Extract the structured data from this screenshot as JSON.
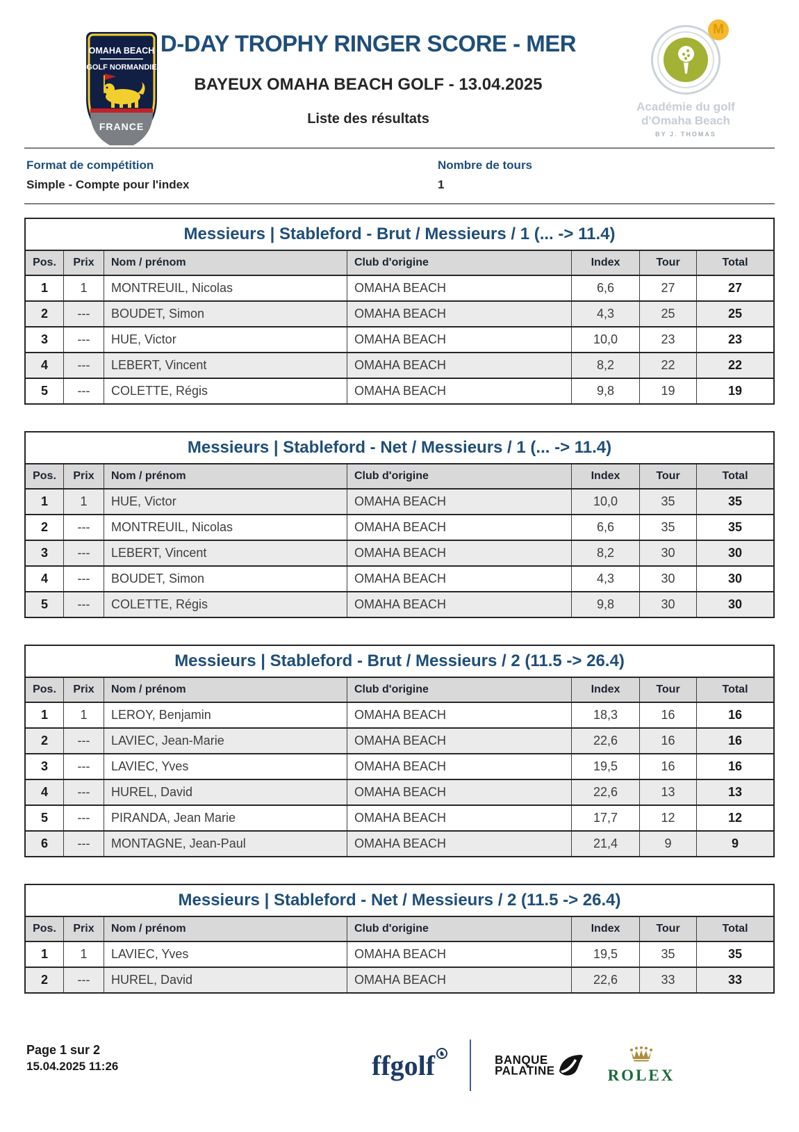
{
  "header": {
    "title": "D-DAY TROPHY RINGER SCORE - MER",
    "subtitle": "BAYEUX OMAHA BEACH GOLF - 13.04.2025",
    "list_label": "Liste des résultats",
    "club_badge": {
      "line1": "OMAHA BEACH",
      "line2": "GOLF NORMANDIE",
      "line3": "FRANCE"
    },
    "academy_badge": {
      "m_letter": "M",
      "line1": "Académie du golf",
      "line2": "d'Omaha Beach",
      "byline": "BY J. THOMAS"
    }
  },
  "meta": {
    "format_label": "Format de compétition",
    "format_value": "Simple - Compte pour l'index",
    "rounds_label": "Nombre de tours",
    "rounds_value": "1"
  },
  "columns": [
    "Pos.",
    "Prix",
    "Nom / prénom",
    "Club d'origine",
    "Index",
    "Tour",
    "Total"
  ],
  "tables": [
    {
      "title": "Messieurs | Stableford - Brut / Messieurs / 1 (... -> 11.4)",
      "rows": [
        {
          "pos": "1",
          "prix": "1",
          "name": "MONTREUIL, Nicolas",
          "club": "OMAHA BEACH",
          "index": "6,6",
          "tour": "27",
          "total": "27"
        },
        {
          "pos": "2",
          "prix": "---",
          "name": "BOUDET, Simon",
          "club": "OMAHA BEACH",
          "index": "4,3",
          "tour": "25",
          "total": "25"
        },
        {
          "pos": "3",
          "prix": "---",
          "name": "HUE, Victor",
          "club": "OMAHA BEACH",
          "index": "10,0",
          "tour": "23",
          "total": "23"
        },
        {
          "pos": "4",
          "prix": "---",
          "name": "LEBERT, Vincent",
          "club": "OMAHA BEACH",
          "index": "8,2",
          "tour": "22",
          "total": "22"
        },
        {
          "pos": "5",
          "prix": "---",
          "name": "COLETTE, Régis",
          "club": "OMAHA BEACH",
          "index": "9,8",
          "tour": "19",
          "total": "19"
        }
      ]
    },
    {
      "title": "Messieurs | Stableford - Net / Messieurs / 1 (... -> 11.4)",
      "rows": [
        {
          "pos": "1",
          "prix": "1",
          "name": "HUE, Victor",
          "club": "OMAHA BEACH",
          "index": "10,0",
          "tour": "35",
          "total": "35"
        },
        {
          "pos": "2",
          "prix": "---",
          "name": "MONTREUIL, Nicolas",
          "club": "OMAHA BEACH",
          "index": "6,6",
          "tour": "35",
          "total": "35"
        },
        {
          "pos": "3",
          "prix": "---",
          "name": "LEBERT, Vincent",
          "club": "OMAHA BEACH",
          "index": "8,2",
          "tour": "30",
          "total": "30"
        },
        {
          "pos": "4",
          "prix": "---",
          "name": "BOUDET, Simon",
          "club": "OMAHA BEACH",
          "index": "4,3",
          "tour": "30",
          "total": "30"
        },
        {
          "pos": "5",
          "prix": "---",
          "name": "COLETTE, Régis",
          "club": "OMAHA BEACH",
          "index": "9,8",
          "tour": "30",
          "total": "30"
        }
      ]
    },
    {
      "title": "Messieurs | Stableford - Brut / Messieurs / 2 (11.5 -> 26.4)",
      "rows": [
        {
          "pos": "1",
          "prix": "1",
          "name": "LEROY, Benjamin",
          "club": "OMAHA BEACH",
          "index": "18,3",
          "tour": "16",
          "total": "16"
        },
        {
          "pos": "2",
          "prix": "---",
          "name": "LAVIEC, Jean-Marie",
          "club": "OMAHA BEACH",
          "index": "22,6",
          "tour": "16",
          "total": "16"
        },
        {
          "pos": "3",
          "prix": "---",
          "name": "LAVIEC, Yves",
          "club": "OMAHA BEACH",
          "index": "19,5",
          "tour": "16",
          "total": "16"
        },
        {
          "pos": "4",
          "prix": "---",
          "name": "HUREL, David",
          "club": "OMAHA BEACH",
          "index": "22,6",
          "tour": "13",
          "total": "13"
        },
        {
          "pos": "5",
          "prix": "---",
          "name": "PIRANDA, Jean Marie",
          "club": "OMAHA BEACH",
          "index": "17,7",
          "tour": "12",
          "total": "12"
        },
        {
          "pos": "6",
          "prix": "---",
          "name": "MONTAGNE, Jean-Paul",
          "club": "OMAHA BEACH",
          "index": "21,4",
          "tour": "9",
          "total": "9"
        }
      ]
    },
    {
      "title": "Messieurs | Stableford - Net / Messieurs / 2 (11.5 -> 26.4)",
      "rows": [
        {
          "pos": "1",
          "prix": "1",
          "name": "LAVIEC, Yves",
          "club": "OMAHA BEACH",
          "index": "19,5",
          "tour": "35",
          "total": "35"
        },
        {
          "pos": "2",
          "prix": "---",
          "name": "HUREL, David",
          "club": "OMAHA BEACH",
          "index": "22,6",
          "tour": "33",
          "total": "33"
        }
      ]
    }
  ],
  "footer": {
    "page": "Page 1 sur 2",
    "datetime": "15.04.2025 11:26",
    "ffgolf_label": "ffgolf",
    "banque_line1": "BANQUE",
    "banque_line2": "PALATINE",
    "rolex_label": "ROLEX"
  },
  "colors": {
    "accent_blue": "#1F4E79",
    "header_row_gray": "#D9D9D9",
    "shaded_row_gray": "#EBEBEB",
    "border_dark": "#262626",
    "rolex_green": "#1A6B3C",
    "crown_gold": "#AC8C3C",
    "olive_green": "#A3B135",
    "shield_navy": "#1B2A55"
  }
}
